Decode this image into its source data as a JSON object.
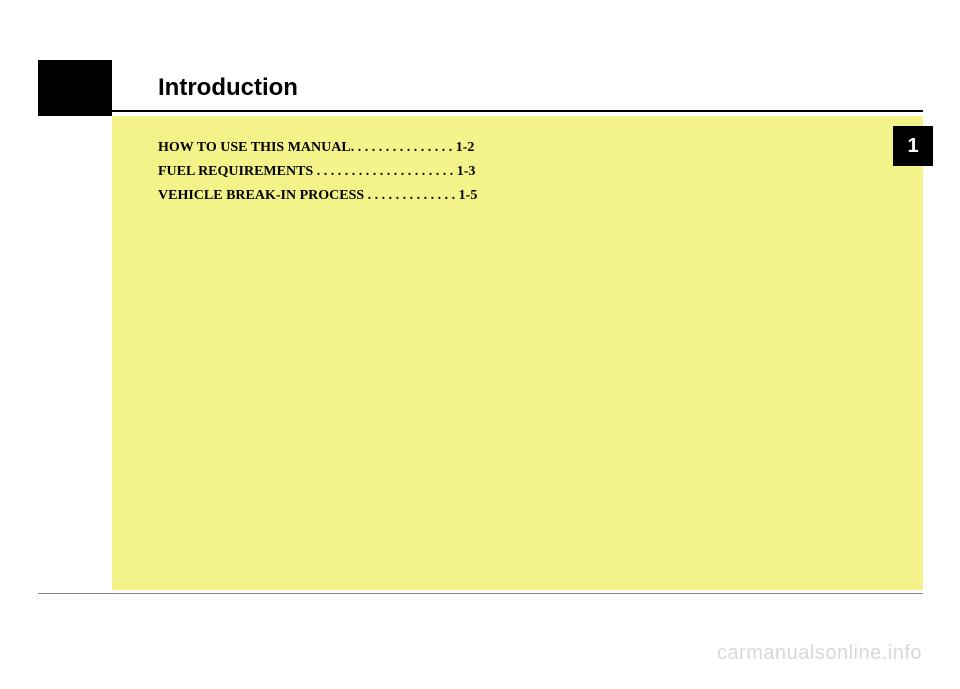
{
  "page": {
    "title": "Introduction",
    "chapter_number": "1",
    "background_color": "#ffffff",
    "content_bg_color": "#f3f389",
    "tab_color": "#000000",
    "text_color": "#000000",
    "title_fontsize": 24,
    "toc_fontsize": 14
  },
  "toc": {
    "entries": [
      {
        "label": "HOW TO USE THIS MANUAL",
        "dots": ". . . . . . . . . . . . . . .",
        "page": "1-2"
      },
      {
        "label": "FUEL REQUIREMENTS",
        "dots": ". . . . . . . . . . . . . . . . . . . .",
        "page": "1-3"
      },
      {
        "label": "VEHICLE BREAK-IN PROCESS",
        "dots": ". . . . . . . . . . . . .",
        "page": "1-5"
      }
    ]
  },
  "watermark": {
    "text": "carmanualsonline.info",
    "color": "#d8d8d8"
  }
}
